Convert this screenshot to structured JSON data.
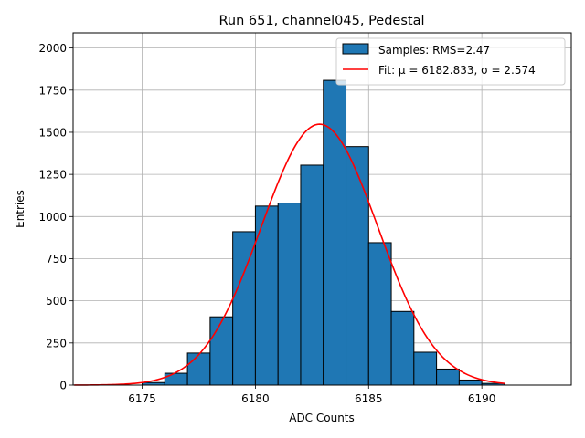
{
  "chart_data": {
    "type": "histogram",
    "title": "Run 651, channel045, Pedestal",
    "xlabel": "ADC Counts",
    "ylabel": "Entries",
    "xlim": [
      6171.95,
      6193.95
    ],
    "ylim": [
      0,
      2090
    ],
    "xticks": [
      6175,
      6180,
      6185,
      6190
    ],
    "yticks": [
      0,
      250,
      500,
      750,
      1000,
      1250,
      1500,
      1750,
      2000
    ],
    "grid": true,
    "legend": {
      "placement": "top-right",
      "entries": [
        {
          "label": "Samples: RMS=2.47",
          "kind": "patch",
          "color": "#1f77b4"
        },
        {
          "label": "Fit: μ = 6182.833, σ = 2.574",
          "kind": "line",
          "color": "#ff0000"
        }
      ]
    },
    "histogram": {
      "name": "Samples: RMS=2.47",
      "color": "#1f77b4",
      "edgecolor": "#000000",
      "bin_width": 1,
      "bins": [
        {
          "x0": 6175,
          "count": 15
        },
        {
          "x0": 6176,
          "count": 70
        },
        {
          "x0": 6177,
          "count": 190
        },
        {
          "x0": 6178,
          "count": 405
        },
        {
          "x0": 6179,
          "count": 910
        },
        {
          "x0": 6180,
          "count": 1062
        },
        {
          "x0": 6181,
          "count": 1080
        },
        {
          "x0": 6182,
          "count": 1305
        },
        {
          "x0": 6183,
          "count": 1808
        },
        {
          "x0": 6184,
          "count": 1415
        },
        {
          "x0": 6185,
          "count": 845
        },
        {
          "x0": 6186,
          "count": 437
        },
        {
          "x0": 6187,
          "count": 195
        },
        {
          "x0": 6188,
          "count": 95
        },
        {
          "x0": 6189,
          "count": 30
        },
        {
          "x0": 6190,
          "count": 10
        }
      ]
    },
    "fit": {
      "name": "Fit: μ = 6182.833, σ = 2.574",
      "color": "#ff0000",
      "mu": 6182.833,
      "sigma": 2.574,
      "amplitude": 1548,
      "x_range": [
        6172,
        6191
      ]
    }
  }
}
